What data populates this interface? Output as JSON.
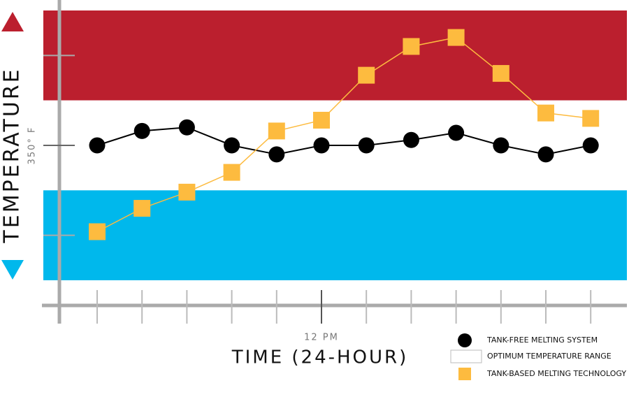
{
  "chart_data": {
    "type": "line",
    "ylabel": "TEMPERATURE",
    "xlabel": "TIME (24-HOUR)",
    "categories": [
      null,
      null,
      null,
      null,
      null,
      "12 PM",
      null,
      null,
      null,
      null,
      null,
      null
    ],
    "ylim": [
      261,
      425
    ],
    "yticks": [
      {
        "value": 350,
        "label": "350° F"
      }
    ],
    "yticks_unlabeled": [
      300,
      400
    ],
    "ranges": [
      {
        "lim": [
          375,
          425
        ],
        "color": "#bb1f2e"
      },
      {
        "lim": [
          325,
          375
        ],
        "name": "OPTIMUM TEMPERATURE RANGE",
        "color": "#ffffff"
      },
      {
        "lim": [
          275,
          325
        ],
        "color": "#00b8ec"
      }
    ],
    "series": [
      {
        "name": "TANK-FREE MELTING SYSTEM",
        "color": "#000000",
        "marker": "circle",
        "values": [
          350,
          358,
          360,
          350,
          345,
          350,
          350,
          353,
          357,
          350,
          345,
          350
        ]
      },
      {
        "name": "TANK-BASED MELTING TECHNOLOGY",
        "color": "#fdbb3f",
        "marker": "square",
        "values": [
          302,
          315,
          324,
          335,
          358,
          364,
          389,
          405,
          410,
          390,
          368,
          365
        ]
      }
    ]
  }
}
